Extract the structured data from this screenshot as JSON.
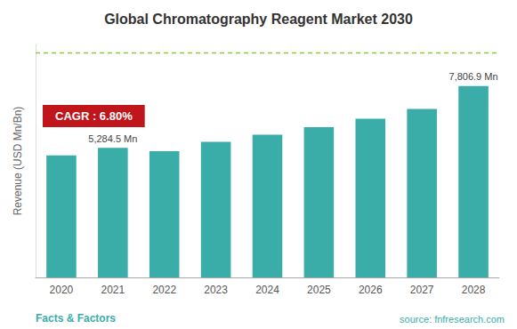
{
  "chart_data": {
    "type": "bar",
    "title": "Global Chromatography Reagent Market 2030",
    "ylabel": "Revenue (USD Mn/Bn)",
    "categories": [
      "2020",
      "2021",
      "2022",
      "2023",
      "2024",
      "2025",
      "2026",
      "2027",
      "2028"
    ],
    "values": [
      4980,
      5284.5,
      5150,
      5530,
      5820,
      6130,
      6470,
      6870,
      7806.9
    ],
    "color": "#3AADA8",
    "ylim": [
      0,
      9500
    ],
    "tick_labels": "x",
    "grid": false,
    "annotations": [
      {
        "category": "2021",
        "text": "5,284.5 Mn"
      },
      {
        "category": "2028",
        "text": "7,806.9 Mn"
      }
    ],
    "reference_line": {
      "value": 9167.5,
      "color": "#8DC63F",
      "line_style": "dashed"
    },
    "highlight_box": {
      "text": "CAGR : 6.80%",
      "color": "#C0151A",
      "text_color": "#ffffff"
    },
    "footer_left": {
      "text": "Facts & Factors",
      "color": "#3AADA8"
    },
    "footer_right": {
      "text": "source: fnfresearch.com",
      "color": "#3AADA8"
    }
  }
}
